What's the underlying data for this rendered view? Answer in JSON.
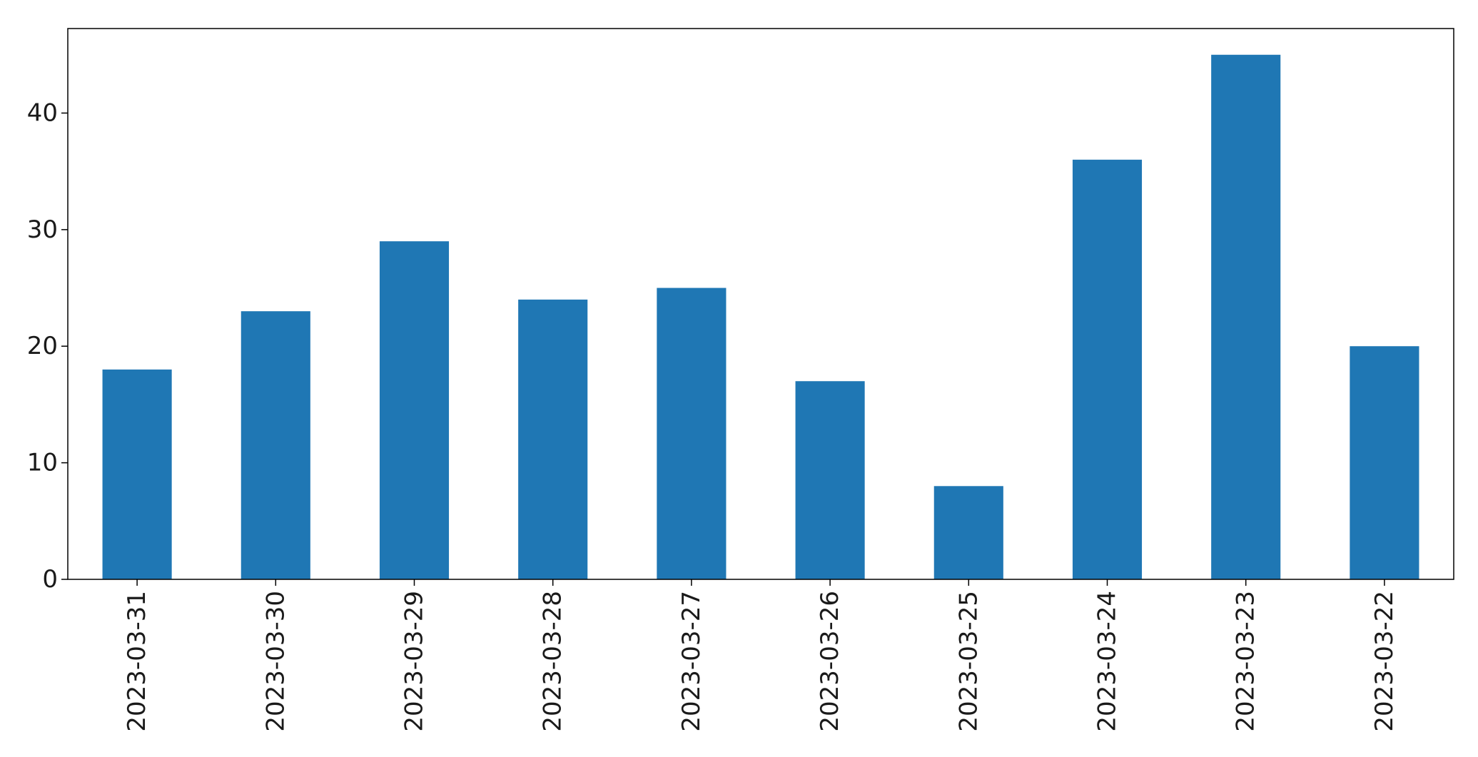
{
  "chart_data": {
    "type": "bar",
    "title": "",
    "xlabel": "",
    "ylabel": "",
    "categories": [
      "2023-03-31",
      "2023-03-30",
      "2023-03-29",
      "2023-03-28",
      "2023-03-27",
      "2023-03-26",
      "2023-03-25",
      "2023-03-24",
      "2023-03-23",
      "2023-03-22"
    ],
    "values": [
      18,
      23,
      29,
      24,
      25,
      17,
      8,
      36,
      45,
      20
    ],
    "ylim": [
      0,
      47.25
    ],
    "yticks": [
      0,
      10,
      20,
      30,
      40
    ],
    "grid": false,
    "legend": "none",
    "bar_color": "#1f77b4"
  }
}
